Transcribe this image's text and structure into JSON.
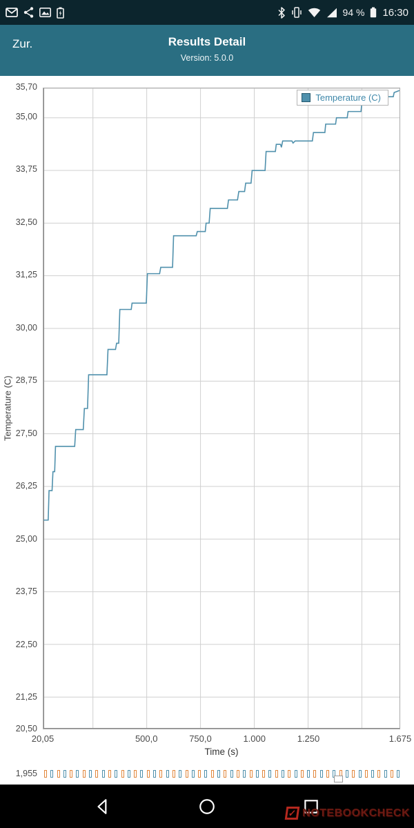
{
  "status_bar": {
    "battery_percent": "94 %",
    "time": "16:30",
    "icons_left": [
      "gmail-icon",
      "share-icon",
      "gallery-icon",
      "battery-charging-icon"
    ],
    "icons_right": [
      "bluetooth-icon",
      "vibrate-icon",
      "wifi-icon",
      "signal-icon",
      "battery-icon"
    ]
  },
  "app_bar": {
    "back_label": "Zur.",
    "title": "Results Detail",
    "subtitle": "Version: 5.0.0",
    "bg_color": "#2a6e82"
  },
  "chart_data": {
    "main": {
      "type": "line",
      "title": "",
      "xlabel": "Time (s)",
      "ylabel": "Temperature (C)",
      "legend": "Temperature (C)",
      "line_color": "#4f90ac",
      "legend_text_color": "#3f88aa",
      "grid": true,
      "legend_position": "top-right",
      "xlim": [
        20.05,
        1675
      ],
      "ylim": [
        20.5,
        35.7
      ],
      "x_ticks": [
        {
          "v": 20.05,
          "label": "20,05"
        },
        {
          "v": 500,
          "label": "500,0"
        },
        {
          "v": 750,
          "label": "750,0"
        },
        {
          "v": 1000,
          "label": "1.000"
        },
        {
          "v": 1250,
          "label": "1.250"
        },
        {
          "v": 1675,
          "label": "1.675"
        }
      ],
      "x_gridlines": [
        250,
        500,
        750,
        1000,
        1250,
        1500
      ],
      "y_ticks": [
        {
          "v": 35.7,
          "label": "35,70"
        },
        {
          "v": 35.0,
          "label": "35,00"
        },
        {
          "v": 33.75,
          "label": "33,75"
        },
        {
          "v": 32.5,
          "label": "32,50"
        },
        {
          "v": 31.25,
          "label": "31,25"
        },
        {
          "v": 30.0,
          "label": "30,00"
        },
        {
          "v": 28.75,
          "label": "28,75"
        },
        {
          "v": 27.5,
          "label": "27,50"
        },
        {
          "v": 26.25,
          "label": "26,25"
        },
        {
          "v": 25.0,
          "label": "25,00"
        },
        {
          "v": 23.75,
          "label": "23,75"
        },
        {
          "v": 22.5,
          "label": "22,50"
        },
        {
          "v": 21.25,
          "label": "21,25"
        },
        {
          "v": 20.5,
          "label": "20,50"
        }
      ],
      "points": [
        [
          20,
          25.45
        ],
        [
          42,
          25.45
        ],
        [
          46,
          26.15
        ],
        [
          60,
          26.15
        ],
        [
          64,
          26.6
        ],
        [
          72,
          26.6
        ],
        [
          76,
          27.2
        ],
        [
          165,
          27.2
        ],
        [
          170,
          27.6
        ],
        [
          205,
          27.6
        ],
        [
          210,
          28.1
        ],
        [
          225,
          28.1
        ],
        [
          230,
          28.9
        ],
        [
          315,
          28.9
        ],
        [
          320,
          29.5
        ],
        [
          355,
          29.5
        ],
        [
          360,
          29.65
        ],
        [
          370,
          29.65
        ],
        [
          375,
          30.45
        ],
        [
          428,
          30.45
        ],
        [
          432,
          30.6
        ],
        [
          498,
          30.6
        ],
        [
          503,
          31.3
        ],
        [
          560,
          31.3
        ],
        [
          565,
          31.45
        ],
        [
          620,
          31.45
        ],
        [
          625,
          32.2
        ],
        [
          730,
          32.2
        ],
        [
          735,
          32.3
        ],
        [
          772,
          32.3
        ],
        [
          776,
          32.5
        ],
        [
          790,
          32.5
        ],
        [
          795,
          32.85
        ],
        [
          875,
          32.85
        ],
        [
          880,
          33.05
        ],
        [
          922,
          33.05
        ],
        [
          928,
          33.25
        ],
        [
          955,
          33.25
        ],
        [
          960,
          33.45
        ],
        [
          985,
          33.45
        ],
        [
          990,
          33.75
        ],
        [
          1050,
          33.75
        ],
        [
          1055,
          34.2
        ],
        [
          1098,
          34.2
        ],
        [
          1102,
          34.37
        ],
        [
          1122,
          34.37
        ],
        [
          1126,
          34.3
        ],
        [
          1132,
          34.45
        ],
        [
          1175,
          34.45
        ],
        [
          1180,
          34.4
        ],
        [
          1190,
          34.45
        ],
        [
          1270,
          34.45
        ],
        [
          1275,
          34.65
        ],
        [
          1328,
          34.65
        ],
        [
          1332,
          34.85
        ],
        [
          1378,
          34.85
        ],
        [
          1382,
          35.0
        ],
        [
          1432,
          35.0
        ],
        [
          1436,
          35.15
        ],
        [
          1496,
          35.15
        ],
        [
          1500,
          35.35
        ],
        [
          1560,
          35.35
        ],
        [
          1565,
          35.45
        ],
        [
          1608,
          35.45
        ],
        [
          1612,
          35.5
        ],
        [
          1646,
          35.5
        ],
        [
          1650,
          35.6
        ],
        [
          1675,
          35.65
        ]
      ]
    },
    "strip": {
      "description": "top edge of a second chart cut off at screen bottom",
      "tick_label": "1,955",
      "marker_count": 56,
      "marker_colors": [
        "#e2873c",
        "#4f90ac"
      ]
    }
  },
  "nav_bar": {
    "icons": [
      "back",
      "home",
      "recents"
    ],
    "watermark": "NOTEBOOKCHECK",
    "watermark_check": "✓"
  }
}
